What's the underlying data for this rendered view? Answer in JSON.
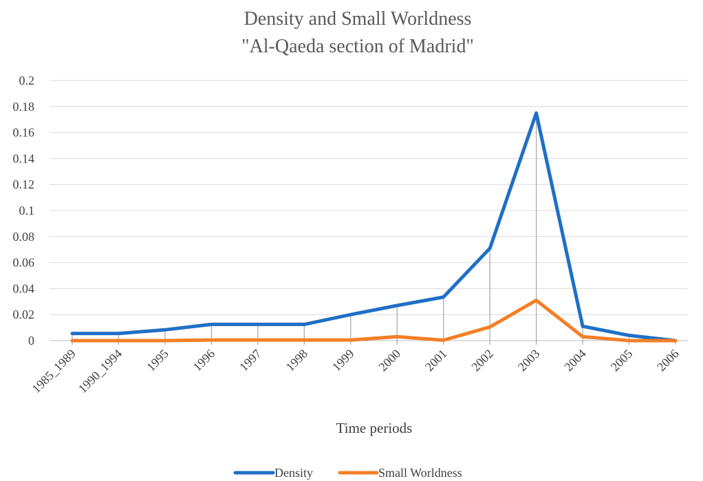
{
  "chart_data": {
    "type": "line",
    "title": [
      "Density and Small Worldness",
      "\"Al-Qaeda section of Madrid\""
    ],
    "xlabel": "Time periods",
    "ylabel": "",
    "categories": [
      "1985_1989",
      "1990_1994",
      "1995",
      "1996",
      "1997",
      "1998",
      "1999",
      "2000",
      "2001",
      "2002",
      "2003",
      "2004",
      "2005",
      "2006"
    ],
    "ylim": [
      0,
      0.2
    ],
    "yticks": [
      "0",
      "0.02",
      "0.04",
      "0.06",
      "0.08",
      "0.1",
      "0.12",
      "0.14",
      "0.16",
      "0.18",
      "0.2"
    ],
    "grid": true,
    "drop_lines": true,
    "legend_position": "bottom",
    "series": [
      {
        "name": "Density",
        "color": "#1f6fc6",
        "values": [
          0.0055,
          0.0055,
          0.0083,
          0.0125,
          0.0125,
          0.0125,
          0.02,
          0.027,
          0.0335,
          0.071,
          0.175,
          0.011,
          0.004,
          0.0
        ]
      },
      {
        "name": "Small Worldness",
        "color": "#f47f26",
        "values": [
          0.0,
          0.0,
          0.0,
          0.0005,
          0.0005,
          0.0005,
          0.0005,
          0.003,
          0.0003,
          0.0105,
          0.031,
          0.003,
          0.0,
          0.0
        ]
      }
    ]
  }
}
